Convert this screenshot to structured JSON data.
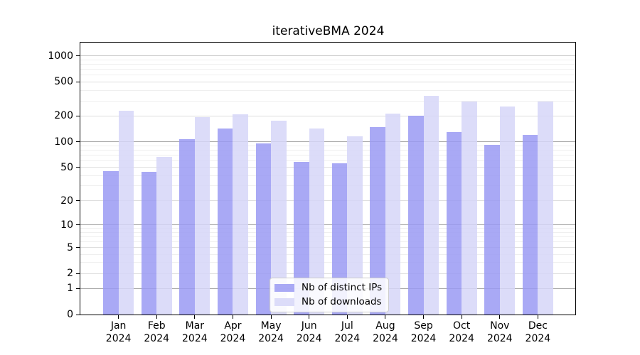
{
  "chart_data": {
    "type": "bar",
    "title": "iterativeBMA 2024",
    "year": "2024",
    "months": [
      "Jan",
      "Feb",
      "Mar",
      "Apr",
      "May",
      "Jun",
      "Jul",
      "Aug",
      "Sep",
      "Oct",
      "Nov",
      "Dec"
    ],
    "categories": [
      "Jan 2024",
      "Feb 2024",
      "Mar 2024",
      "Apr 2024",
      "May 2024",
      "Jun 2024",
      "Jul 2024",
      "Aug 2024",
      "Sep 2024",
      "Oct 2024",
      "Nov 2024",
      "Dec 2024"
    ],
    "series": [
      {
        "name": "Nb of distinct IPs",
        "color": "#9a9af3",
        "opacity": 0.85,
        "values": [
          45,
          44,
          108,
          144,
          95,
          58,
          56,
          150,
          200,
          131,
          93,
          121
        ]
      },
      {
        "name": "Nb of downloads",
        "color": "#d6d6f8",
        "opacity": 0.85,
        "values": [
          231,
          66,
          196,
          211,
          178,
          144,
          115,
          215,
          345,
          294,
          260,
          298
        ]
      }
    ],
    "y_axis": {
      "scale": "log1p",
      "max": 1430,
      "ticks": [
        0,
        1,
        2,
        5,
        10,
        20,
        50,
        100,
        200,
        500,
        1000
      ],
      "tick_labels": [
        "0",
        "1",
        "2",
        "5",
        "10",
        "20",
        "50",
        "100",
        "200",
        "500",
        "1000"
      ]
    },
    "gridlines": {
      "major": [
        1,
        10,
        100
      ],
      "semi": [
        1000
      ],
      "labeled": [
        2,
        5,
        20,
        50,
        200,
        500
      ],
      "minor": [
        3,
        4,
        6,
        7,
        8,
        9,
        30,
        40,
        60,
        70,
        80,
        90,
        300,
        400,
        600,
        700,
        800,
        900
      ],
      "major_color": "#a9a9a9",
      "semi_color": "#c8c8c8",
      "labeled_color": "#dedede",
      "minor_color": "#efefef"
    },
    "legend": {
      "position": "inside-bottom-center"
    },
    "grid": true
  }
}
